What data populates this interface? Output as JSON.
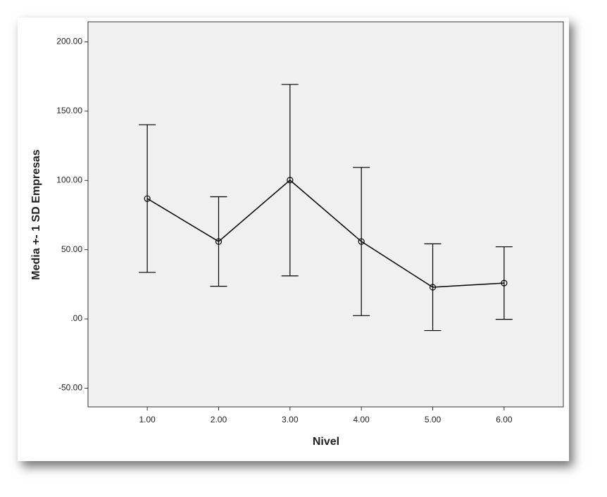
{
  "chart_data": {
    "type": "line",
    "x_label": "Nivel",
    "y_label": "Media +- 1 SD Empresas",
    "x": [
      1,
      2,
      3,
      4,
      5,
      6
    ],
    "series": [
      {
        "color": "#000000",
        "values": [
          86.9,
          55.9,
          100.2,
          55.9,
          22.9,
          25.9
        ],
        "errors": [
          53.3,
          32.3,
          69.1,
          53.5,
          31.3,
          26.2
        ]
      }
    ],
    "xlim": [
      0.17,
      6.83
    ],
    "xticks": [
      {
        "value": 1,
        "label": "1.00"
      },
      {
        "value": 2,
        "label": "2.00"
      },
      {
        "value": 3,
        "label": "3.00"
      },
      {
        "value": 4,
        "label": "4.00"
      },
      {
        "value": 5,
        "label": "5.00"
      },
      {
        "value": 6,
        "label": "6.00"
      }
    ],
    "ylim": [
      -63.5,
      214.5
    ],
    "yticks": [
      {
        "value": -50,
        "label": "-50.00"
      },
      {
        "value": 0,
        "label": ".00"
      },
      {
        "value": 50,
        "label": "50.00"
      },
      {
        "value": 100,
        "label": "100.00"
      },
      {
        "value": 150,
        "label": "150.00"
      },
      {
        "value": 200,
        "label": "200.00"
      }
    ],
    "grid": false
  }
}
